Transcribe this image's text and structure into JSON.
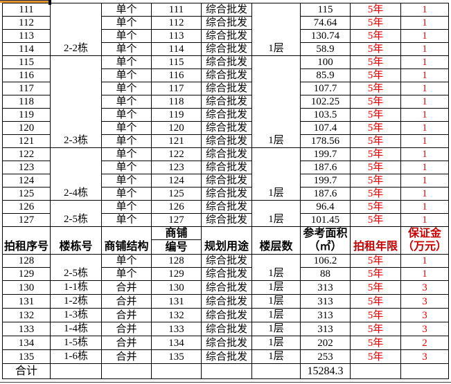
{
  "colors": {
    "value_red": "#e60000",
    "header_red": "#c60000",
    "topbar_orange": "#e2952f",
    "grid": "#000000"
  },
  "table": {
    "headers": {
      "seq": "拍租序号",
      "building": "楼栋号",
      "structure": "商铺结构",
      "shop_no_line1": "商铺",
      "shop_no_line2": "编号",
      "use": "规划用途",
      "floors": "楼层数",
      "area_line1": "参考面积",
      "area_line2": "（㎡）",
      "term": "拍租年限",
      "deposit_line1": "保证金",
      "deposit_line2": "（万元）"
    },
    "groups_above": [
      {
        "building": "2-2栋",
        "floor": "1层",
        "rows": [
          {
            "seq": "111",
            "structure": "单个",
            "shop_no": "111",
            "use": "综合批发",
            "area": "115",
            "term": "5年",
            "deposit": "1"
          },
          {
            "seq": "112",
            "structure": "单个",
            "shop_no": "112",
            "use": "综合批发",
            "area": "74.64",
            "term": "5年",
            "deposit": "1"
          },
          {
            "seq": "113",
            "structure": "单个",
            "shop_no": "113",
            "use": "综合批发",
            "area": "130.74",
            "term": "5年",
            "deposit": "1"
          },
          {
            "seq": "114",
            "structure": "单个",
            "shop_no": "114",
            "use": "综合批发",
            "area": "58.9",
            "term": "5年",
            "deposit": "1"
          }
        ]
      },
      {
        "building": "2-3栋",
        "floor": "1层",
        "rows": [
          {
            "seq": "115",
            "structure": "单个",
            "shop_no": "115",
            "use": "综合批发",
            "area": "100",
            "term": "5年",
            "deposit": "1"
          },
          {
            "seq": "116",
            "structure": "单个",
            "shop_no": "116",
            "use": "综合批发",
            "area": "85.9",
            "term": "5年",
            "deposit": "1"
          },
          {
            "seq": "117",
            "structure": "单个",
            "shop_no": "117",
            "use": "综合批发",
            "area": "107.7",
            "term": "5年",
            "deposit": "1"
          },
          {
            "seq": "118",
            "structure": "单个",
            "shop_no": "118",
            "use": "综合批发",
            "area": "102.25",
            "term": "5年",
            "deposit": "1"
          },
          {
            "seq": "119",
            "structure": "单个",
            "shop_no": "119",
            "use": "综合批发",
            "area": "103.5",
            "term": "5年",
            "deposit": "1"
          },
          {
            "seq": "120",
            "structure": "单个",
            "shop_no": "120",
            "use": "综合批发",
            "area": "107.4",
            "term": "5年",
            "deposit": "1"
          },
          {
            "seq": "121",
            "structure": "单个",
            "shop_no": "121",
            "use": "综合批发",
            "area": "178.56",
            "term": "5年",
            "deposit": "1"
          }
        ]
      },
      {
        "building": "2-4栋",
        "floor": "1层",
        "rows": [
          {
            "seq": "122",
            "structure": "单个",
            "shop_no": "122",
            "use": "综合批发",
            "area": "199.7",
            "term": "5年",
            "deposit": "1"
          },
          {
            "seq": "123",
            "structure": "单个",
            "shop_no": "123",
            "use": "综合批发",
            "area": "187.6",
            "term": "5年",
            "deposit": "1"
          },
          {
            "seq": "124",
            "structure": "单个",
            "shop_no": "124",
            "use": "综合批发",
            "area": "199.7",
            "term": "5年",
            "deposit": "1"
          },
          {
            "seq": "125",
            "structure": "单个",
            "shop_no": "125",
            "use": "综合批发",
            "area": "187.6",
            "term": "5年",
            "deposit": "1"
          }
        ]
      },
      {
        "building": "2-5栋",
        "floor": "1层",
        "rows": [
          {
            "seq": "126",
            "structure": "单个",
            "shop_no": "126",
            "use": "综合批发",
            "area": "96.4",
            "term": "5年",
            "deposit": "1"
          },
          {
            "seq": "127",
            "structure": "单个",
            "shop_no": "127",
            "use": "综合批发",
            "area": "101.45",
            "term": "5年",
            "deposit": "1"
          }
        ]
      }
    ],
    "groups_below": [
      {
        "building": "2-5栋",
        "floor": "1层",
        "rows": [
          {
            "seq": "128",
            "structure": "单个",
            "shop_no": "128",
            "use": "综合批发",
            "area": "106.2",
            "term": "5年",
            "deposit": "1"
          },
          {
            "seq": "129",
            "structure": "单个",
            "shop_no": "129",
            "use": "综合批发",
            "area": "88",
            "term": "5年",
            "deposit": "1"
          }
        ]
      },
      {
        "building": "1-1栋",
        "floor": "1层",
        "rows": [
          {
            "seq": "130",
            "structure": "合并",
            "shop_no": "130",
            "use": "综合批发",
            "area": "313",
            "term": "5年",
            "deposit": "3"
          }
        ]
      },
      {
        "building": "1-2栋",
        "floor": "1层",
        "rows": [
          {
            "seq": "131",
            "structure": "合并",
            "shop_no": "131",
            "use": "综合批发",
            "area": "313",
            "term": "5年",
            "deposit": "3"
          }
        ]
      },
      {
        "building": "1-3栋",
        "floor": "1层",
        "rows": [
          {
            "seq": "132",
            "structure": "合并",
            "shop_no": "132",
            "use": "综合批发",
            "area": "313",
            "term": "5年",
            "deposit": "3"
          }
        ]
      },
      {
        "building": "1-4栋",
        "floor": "1层",
        "rows": [
          {
            "seq": "133",
            "structure": "合并",
            "shop_no": "133",
            "use": "综合批发",
            "area": "313",
            "term": "5年",
            "deposit": "3"
          }
        ]
      },
      {
        "building": "1-5栋",
        "floor": "1层",
        "rows": [
          {
            "seq": "134",
            "structure": "合并",
            "shop_no": "134",
            "use": "综合批发",
            "area": "202",
            "term": "5年",
            "deposit": "2"
          }
        ]
      },
      {
        "building": "1-6栋",
        "floor": "1层",
        "rows": [
          {
            "seq": "135",
            "structure": "合并",
            "shop_no": "135",
            "use": "综合批发",
            "area": "253",
            "term": "5年",
            "deposit": "3"
          }
        ]
      }
    ],
    "total": {
      "label": "合计",
      "building": "",
      "structure": "",
      "shop_no": "",
      "use": "",
      "floor": "",
      "area": "15284.3",
      "term": "",
      "deposit": ""
    }
  }
}
